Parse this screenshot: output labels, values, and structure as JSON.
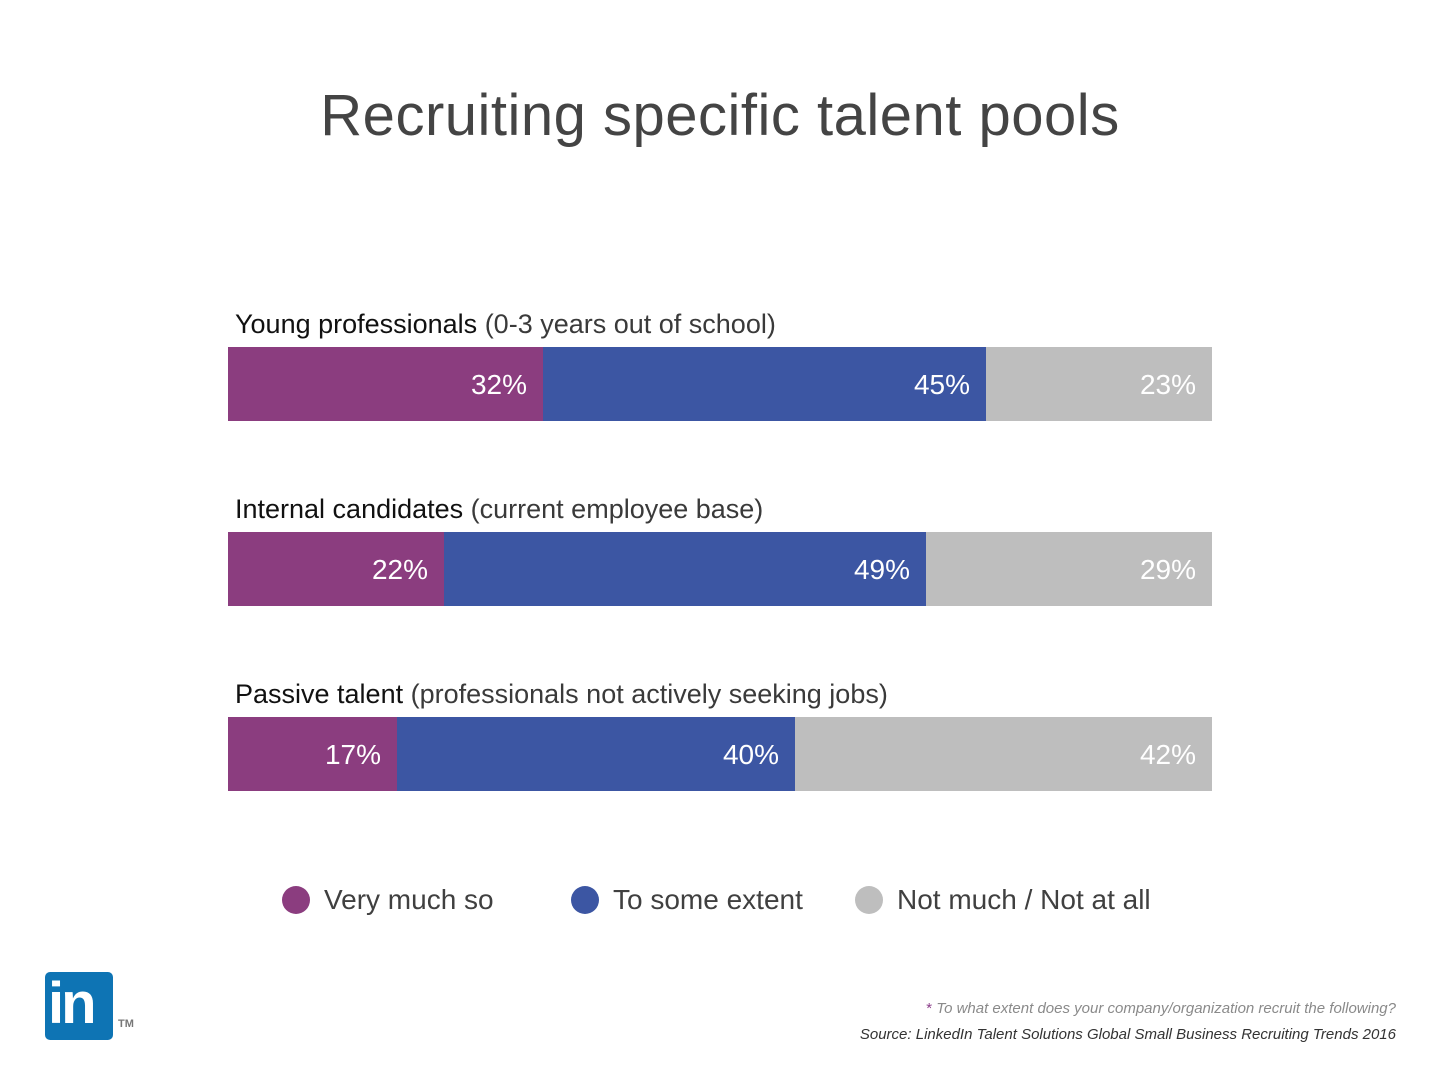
{
  "title": "Recruiting specific talent pools",
  "colors": {
    "very_much": "#8b3d7f",
    "some_extent": "#3c56a3",
    "not_much": "#bebebe",
    "linkedin_blue": "#0e74b4"
  },
  "chart_data": {
    "type": "bar",
    "orientation": "horizontal",
    "stacked": true,
    "title": "Recruiting specific talent pools",
    "categories": [
      {
        "bold": "Young professionals",
        "rest": " (0-3 years out of school)"
      },
      {
        "bold": "Internal candidates",
        "rest": " (current employee base)"
      },
      {
        "bold": "Passive talent",
        "rest": " (professionals not actively seeking jobs)"
      }
    ],
    "series": [
      {
        "name": "Very much so",
        "values": [
          32,
          22,
          17
        ],
        "labels": [
          "32%",
          "22%",
          "17%"
        ],
        "color": "#8b3d7f"
      },
      {
        "name": "To some extent",
        "values": [
          45,
          49,
          40
        ],
        "labels": [
          "45%",
          "49%",
          "40%"
        ],
        "color": "#3c56a3"
      },
      {
        "name": "Not much / Not at all",
        "values": [
          23,
          29,
          42
        ],
        "labels": [
          "23%",
          "29%",
          "42%"
        ],
        "color": "#bebebe"
      }
    ],
    "legend_position": "bottom",
    "grid": false
  },
  "footnote": {
    "star": "*",
    "question": " To what extent does your company/organization recruit the following?",
    "source": "Source: LinkedIn Talent Solutions Global Small Business Recruiting Trends 2016"
  },
  "logo": {
    "text": "in",
    "tm": "TM"
  }
}
